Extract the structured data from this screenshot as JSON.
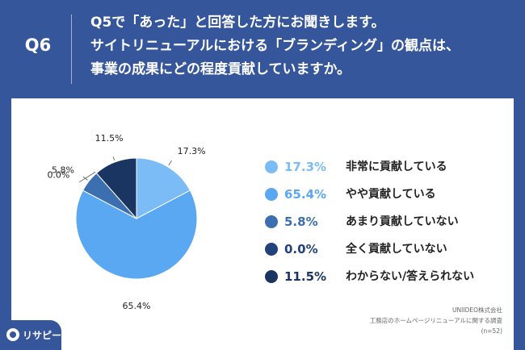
{
  "header": {
    "qnum": "Q6",
    "lines": [
      "Q5で「あった」と回答した方にお聞きします。",
      "サイトリニューアルにおける「ブランディング」の観点は、",
      "事業の成果にどの程度貢献していますか。"
    ]
  },
  "chart_data": {
    "type": "pie",
    "start": "12 o'clock, clockwise",
    "slices": [
      {
        "label": "非常に貢献している",
        "value": 17.3,
        "display": "17.3%",
        "color": "#7bbcf7"
      },
      {
        "label": "やや貢献している",
        "value": 65.4,
        "display": "65.4%",
        "color": "#5aa7f2"
      },
      {
        "label": "あまり貢献していない",
        "value": 5.8,
        "display": "5.8%",
        "color": "#3b6fb0"
      },
      {
        "label": "全く貢献していない",
        "value": 0.0,
        "display": "0.0%",
        "color": "#22427c"
      },
      {
        "label": "わからない/答えられない",
        "value": 11.5,
        "display": "11.5%",
        "color": "#1b3563"
      }
    ]
  },
  "source": {
    "line1": "UNIIDEO株式会社",
    "line2": "工務店のホームページリニューアルに関する調査",
    "line3": "(n=52)"
  },
  "logo": {
    "text": "リサピー",
    "icon": "risapy-logo-icon"
  }
}
